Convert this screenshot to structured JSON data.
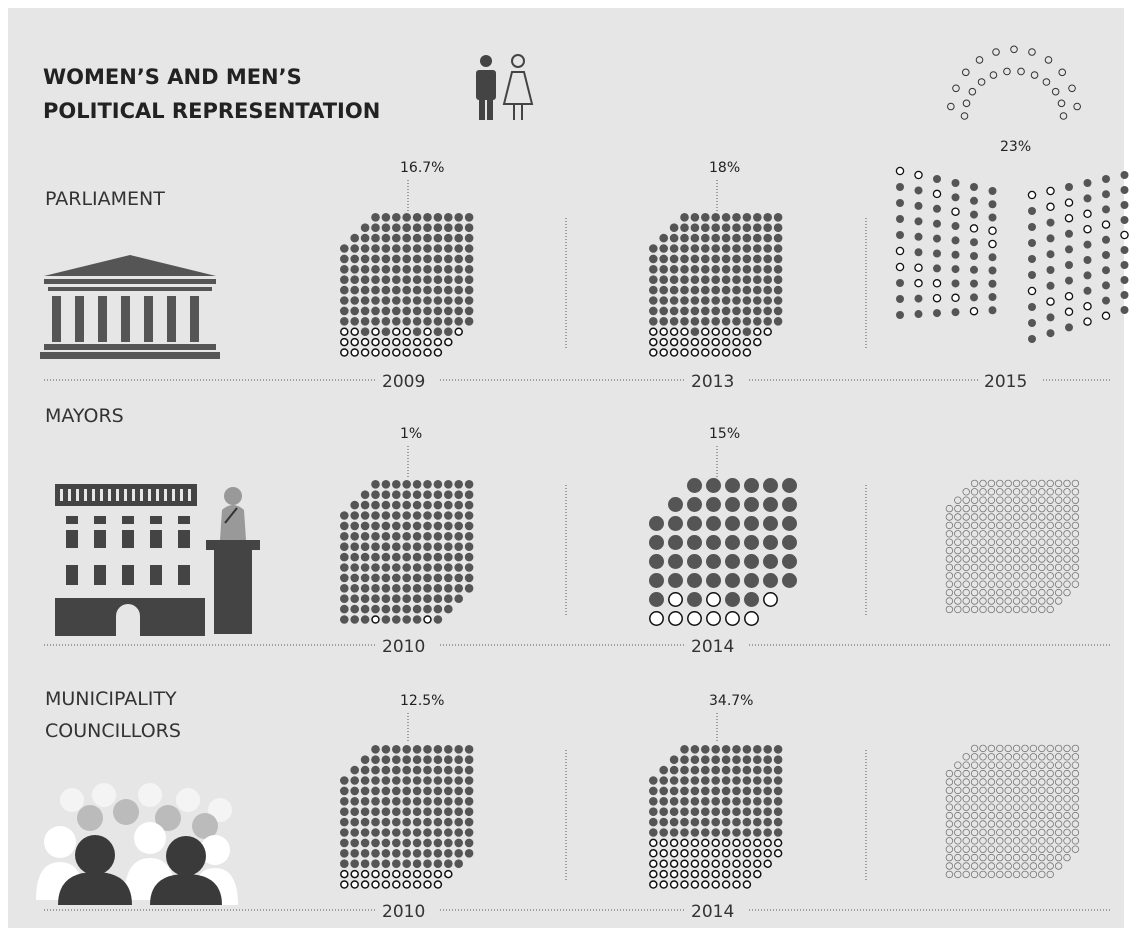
{
  "header": {
    "title_lines": [
      "WOMEN’S AND MEN’S",
      "POLITICAL REPRESENTATION"
    ]
  },
  "sections": [
    {
      "label_lines": [
        "PARLIAMENT"
      ],
      "panels": [
        {
          "year": "2009",
          "share": {
            "value": 16.7,
            "label": "16.7%"
          }
        },
        {
          "year": "2013",
          "share": {
            "value": 18,
            "label": "18%"
          }
        },
        {
          "year": "2015",
          "share": {
            "value": 23,
            "label": "23%"
          }
        }
      ]
    },
    {
      "label_lines": [
        "MAYORS"
      ],
      "panels": [
        {
          "year": "2010",
          "share": {
            "value": 1,
            "label": "1%"
          }
        },
        {
          "year": "2014",
          "share": {
            "value": 15,
            "label": "15%"
          }
        }
      ]
    },
    {
      "label_lines": [
        "MUNICIPALITY",
        "COUNCILLORS"
      ],
      "panels": [
        {
          "year": "2010",
          "share": {
            "value": 12.5,
            "label": "12.5%"
          }
        },
        {
          "year": "2014",
          "share": {
            "value": 34.7,
            "label": "34.7%"
          }
        }
      ]
    }
  ]
}
